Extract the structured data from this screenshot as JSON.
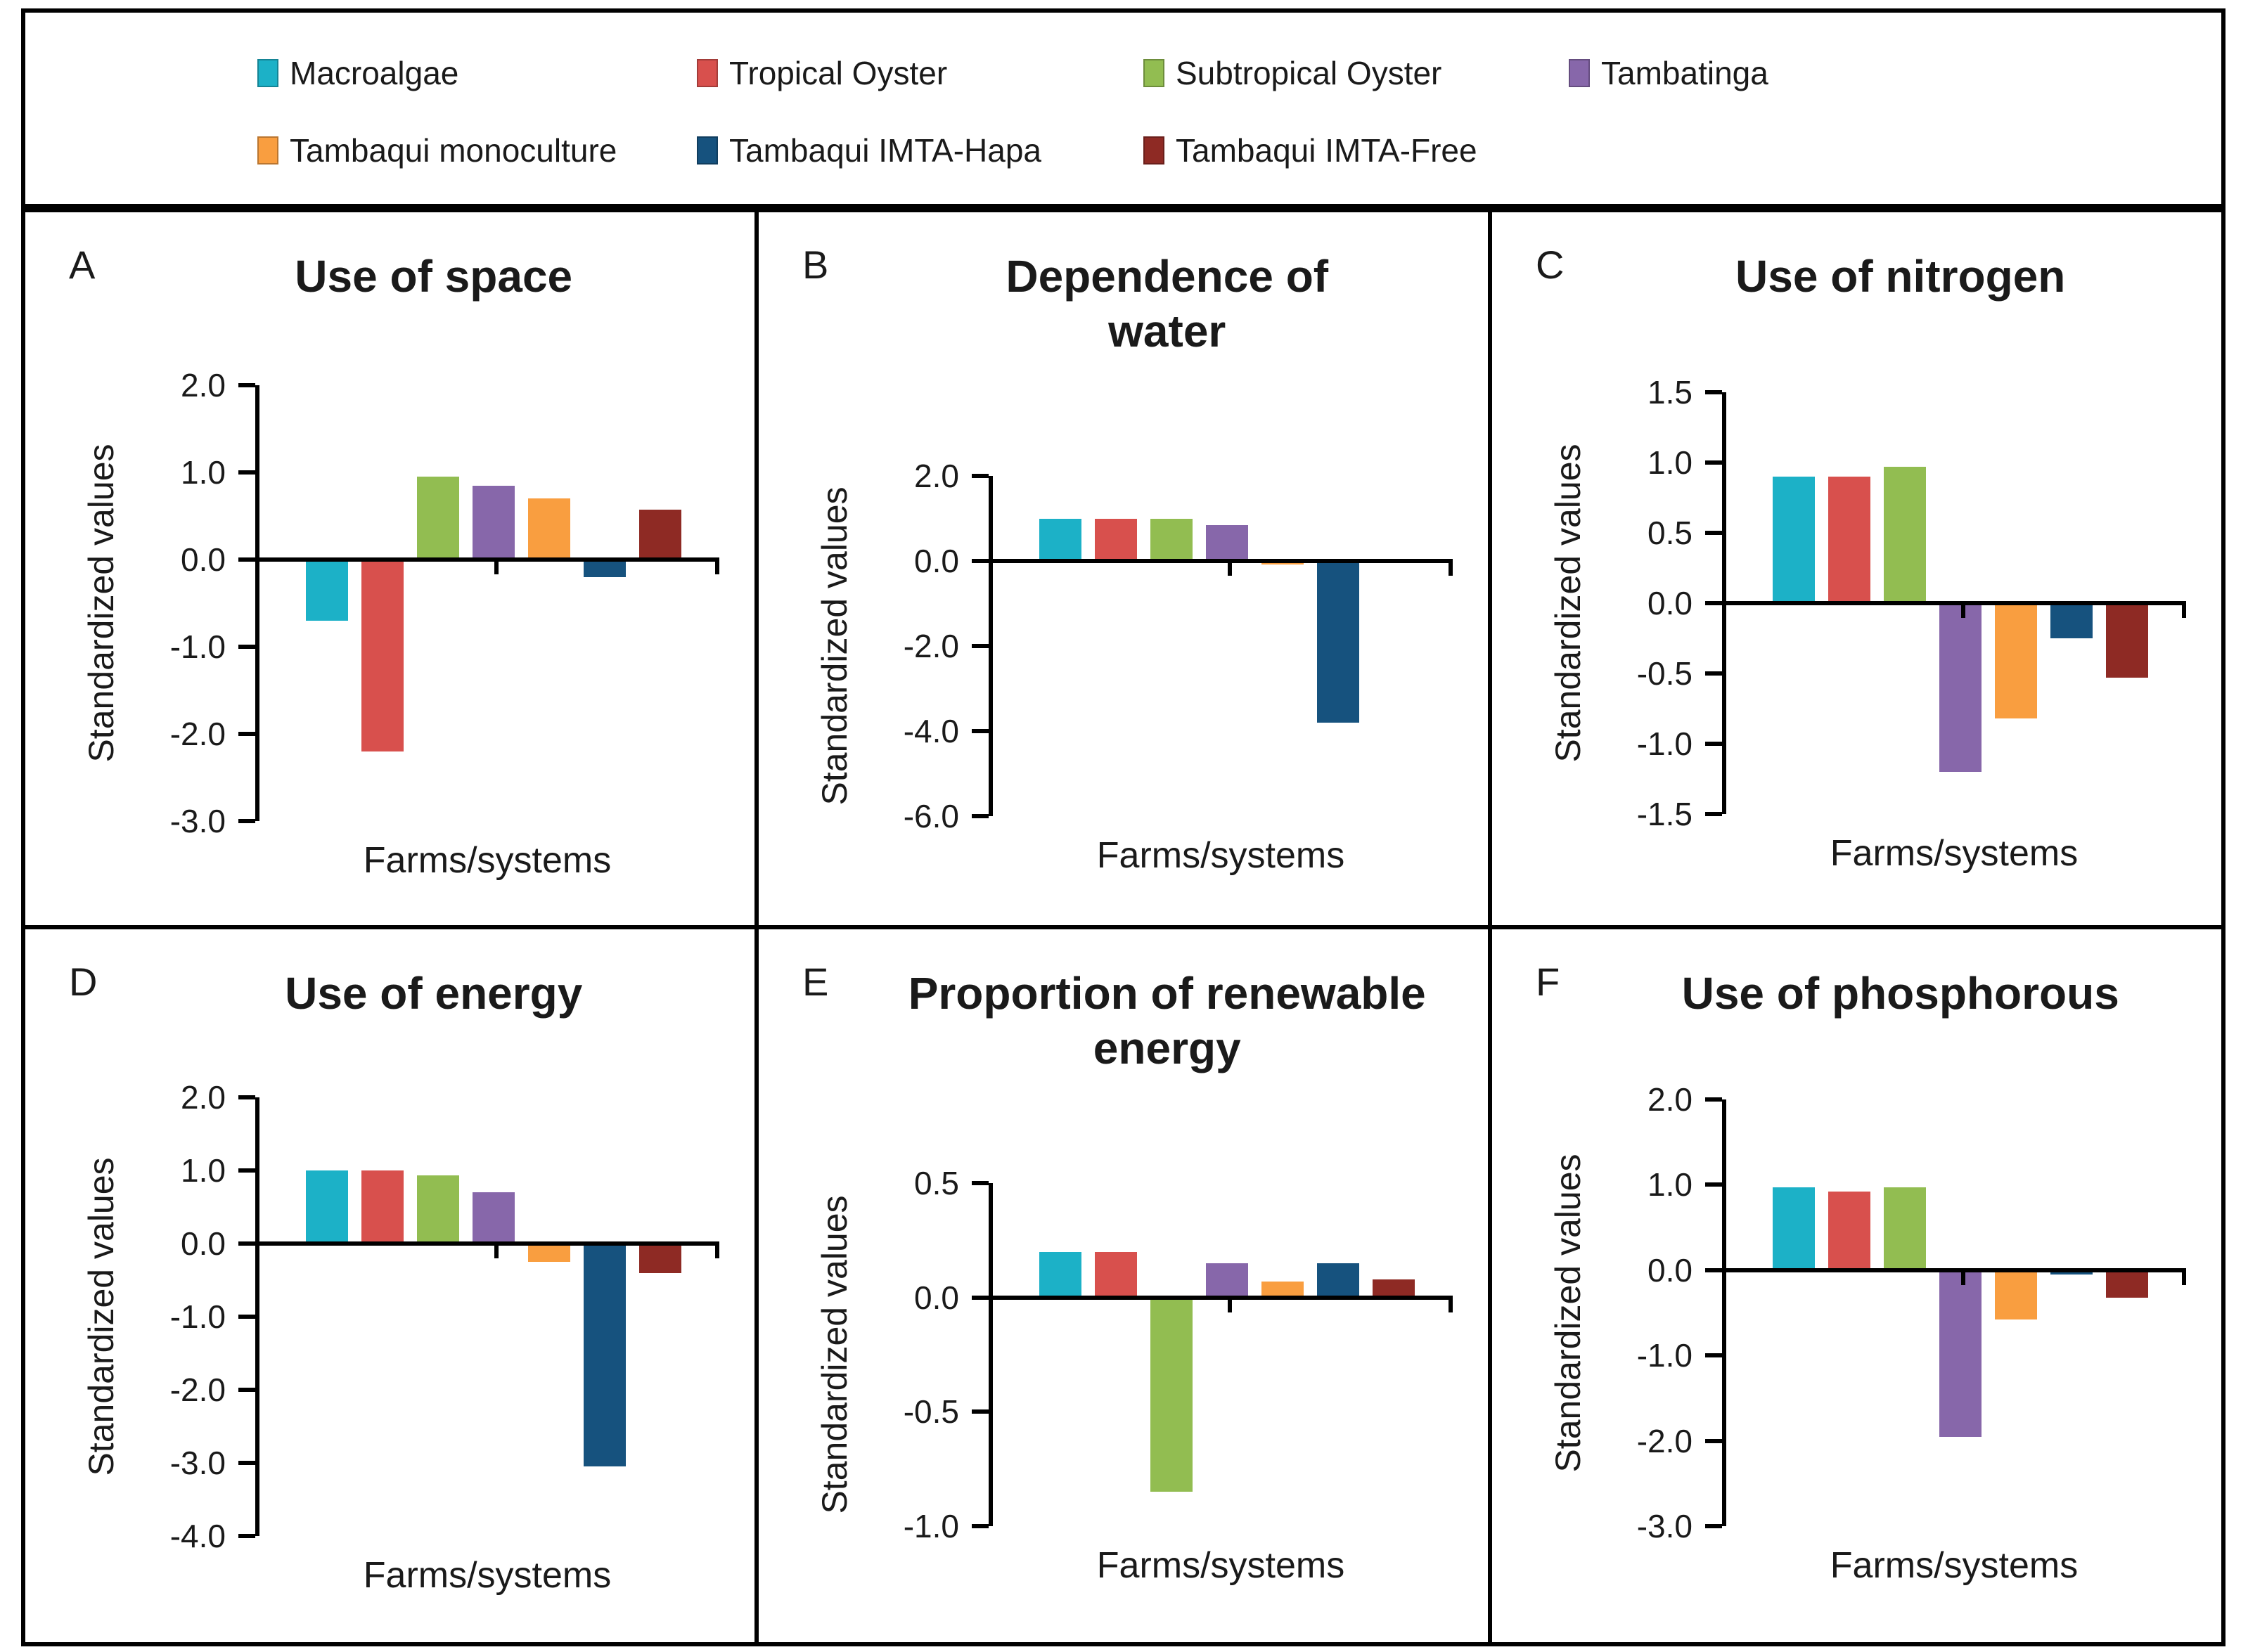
{
  "legend": {
    "items": [
      {
        "label": "Macroalgae",
        "color": "#1cb1c7",
        "slug": "macroalgae"
      },
      {
        "label": "Tropical Oyster",
        "color": "#d8504d",
        "slug": "tropical-oyster"
      },
      {
        "label": "Subtropical Oyster",
        "color": "#92bd51",
        "slug": "subtropical-oyster"
      },
      {
        "label": "Tambatinga",
        "color": "#8767aa",
        "slug": "tambatinga"
      },
      {
        "label": "Tambaqui monoculture",
        "color": "#f99e40",
        "slug": "tambaqui-monoculture"
      },
      {
        "label": "Tambaqui IMTA-Hapa",
        "color": "#16527e",
        "slug": "tambaqui-imta-hapa"
      },
      {
        "label": "Tambaqui IMTA-Free",
        "color": "#8e2a24",
        "slug": "tambaqui-imta-free"
      }
    ]
  },
  "chart_data": [
    {
      "letter": "A",
      "title": "Use of space",
      "type": "bar",
      "categories": [
        "Macroalgae",
        "Tropical Oyster",
        "Subtropical Oyster",
        "Tambatinga",
        "Tambaqui monoculture",
        "Tambaqui IMTA-Hapa",
        "Tambaqui IMTA-Free"
      ],
      "values": [
        -0.7,
        -2.2,
        0.95,
        0.85,
        0.7,
        -0.2,
        0.57
      ],
      "ylabel": "Standardized values",
      "xlabel": "Farms/systems",
      "ylim": [
        -3.0,
        2.0
      ],
      "yticks": [
        {
          "v": 2,
          "label": "2.0"
        },
        {
          "v": 1,
          "label": "1.0"
        },
        {
          "v": 0,
          "label": "0.0"
        },
        {
          "v": -1,
          "label": "-1.0"
        },
        {
          "v": -2,
          "label": "-2.0"
        },
        {
          "v": -3,
          "label": "-3.0"
        }
      ]
    },
    {
      "letter": "B",
      "title": "Dependence of water",
      "type": "bar",
      "categories": [
        "Macroalgae",
        "Tropical Oyster",
        "Subtropical Oyster",
        "Tambatinga",
        "Tambaqui monoculture",
        "Tambaqui IMTA-Hapa",
        "Tambaqui IMTA-Free"
      ],
      "values": [
        1.0,
        1.0,
        1.0,
        0.85,
        -0.08,
        -3.8,
        0.0
      ],
      "ylabel": "Standardized values",
      "xlabel": "Farms/systems",
      "ylim": [
        -6.0,
        2.0
      ],
      "yticks": [
        {
          "v": 2,
          "label": "2.0"
        },
        {
          "v": 0,
          "label": "0.0"
        },
        {
          "v": -2,
          "label": "-2.0"
        },
        {
          "v": -4,
          "label": "-4.0"
        },
        {
          "v": -6,
          "label": "-6.0"
        }
      ]
    },
    {
      "letter": "C",
      "title": "Use of nitrogen",
      "type": "bar",
      "categories": [
        "Macroalgae",
        "Tropical Oyster",
        "Subtropical Oyster",
        "Tambatinga",
        "Tambaqui monoculture",
        "Tambaqui IMTA-Hapa",
        "Tambaqui IMTA-Free"
      ],
      "values": [
        0.9,
        0.9,
        0.97,
        -1.2,
        -0.82,
        -0.25,
        -0.53
      ],
      "ylabel": "Standardized values",
      "xlabel": "Farms/systems",
      "ylim": [
        -1.5,
        1.5
      ],
      "yticks": [
        {
          "v": 1.5,
          "label": "1.5"
        },
        {
          "v": 1,
          "label": "1.0"
        },
        {
          "v": 0.5,
          "label": "0.5"
        },
        {
          "v": 0,
          "label": "0.0"
        },
        {
          "v": -0.5,
          "label": "-0.5"
        },
        {
          "v": -1,
          "label": "-1.0"
        },
        {
          "v": -1.5,
          "label": "-1.5"
        }
      ]
    },
    {
      "letter": "D",
      "title": "Use of energy",
      "type": "bar",
      "categories": [
        "Macroalgae",
        "Tropical Oyster",
        "Subtropical Oyster",
        "Tambatinga",
        "Tambaqui monoculture",
        "Tambaqui IMTA-Hapa",
        "Tambaqui IMTA-Free"
      ],
      "values": [
        1.0,
        1.0,
        0.93,
        0.7,
        -0.25,
        -3.05,
        -0.4
      ],
      "ylabel": "Standardized values",
      "xlabel": "Farms/systems",
      "ylim": [
        -4.0,
        2.0
      ],
      "yticks": [
        {
          "v": 2,
          "label": "2.0"
        },
        {
          "v": 1,
          "label": "1.0"
        },
        {
          "v": 0,
          "label": "0.0"
        },
        {
          "v": -1,
          "label": "-1.0"
        },
        {
          "v": -2,
          "label": "-2.0"
        },
        {
          "v": -3,
          "label": "-3.0"
        },
        {
          "v": -4,
          "label": "-4.0"
        }
      ]
    },
    {
      "letter": "E",
      "title": "Proportion of renewable energy",
      "type": "bar",
      "categories": [
        "Macroalgae",
        "Tropical Oyster",
        "Subtropical Oyster",
        "Tambatinga",
        "Tambaqui monoculture",
        "Tambaqui IMTA-Hapa",
        "Tambaqui IMTA-Free"
      ],
      "values": [
        0.2,
        0.2,
        -0.85,
        0.15,
        0.07,
        0.15,
        0.08
      ],
      "ylabel": "Standardized values",
      "xlabel": "Farms/systems",
      "ylim": [
        -1.0,
        0.5
      ],
      "yticks": [
        {
          "v": 0.5,
          "label": "0.5"
        },
        {
          "v": 0,
          "label": "0.0"
        },
        {
          "v": -0.5,
          "label": "-0.5"
        },
        {
          "v": -1,
          "label": "-1.0"
        }
      ]
    },
    {
      "letter": "F",
      "title": "Use of phosphorous",
      "type": "bar",
      "categories": [
        "Macroalgae",
        "Tropical Oyster",
        "Subtropical Oyster",
        "Tambatinga",
        "Tambaqui monoculture",
        "Tambaqui IMTA-Hapa",
        "Tambaqui IMTA-Free"
      ],
      "values": [
        0.97,
        0.92,
        0.97,
        -1.95,
        -0.58,
        -0.05,
        -0.32
      ],
      "ylabel": "Standardized values",
      "xlabel": "Farms/systems",
      "ylim": [
        -3.0,
        2.0
      ],
      "yticks": [
        {
          "v": 2,
          "label": "2.0"
        },
        {
          "v": 1,
          "label": "1.0"
        },
        {
          "v": 0,
          "label": "0.0"
        },
        {
          "v": -1,
          "label": "-1.0"
        },
        {
          "v": -2,
          "label": "-2.0"
        },
        {
          "v": -3,
          "label": "-3.0"
        }
      ]
    }
  ]
}
